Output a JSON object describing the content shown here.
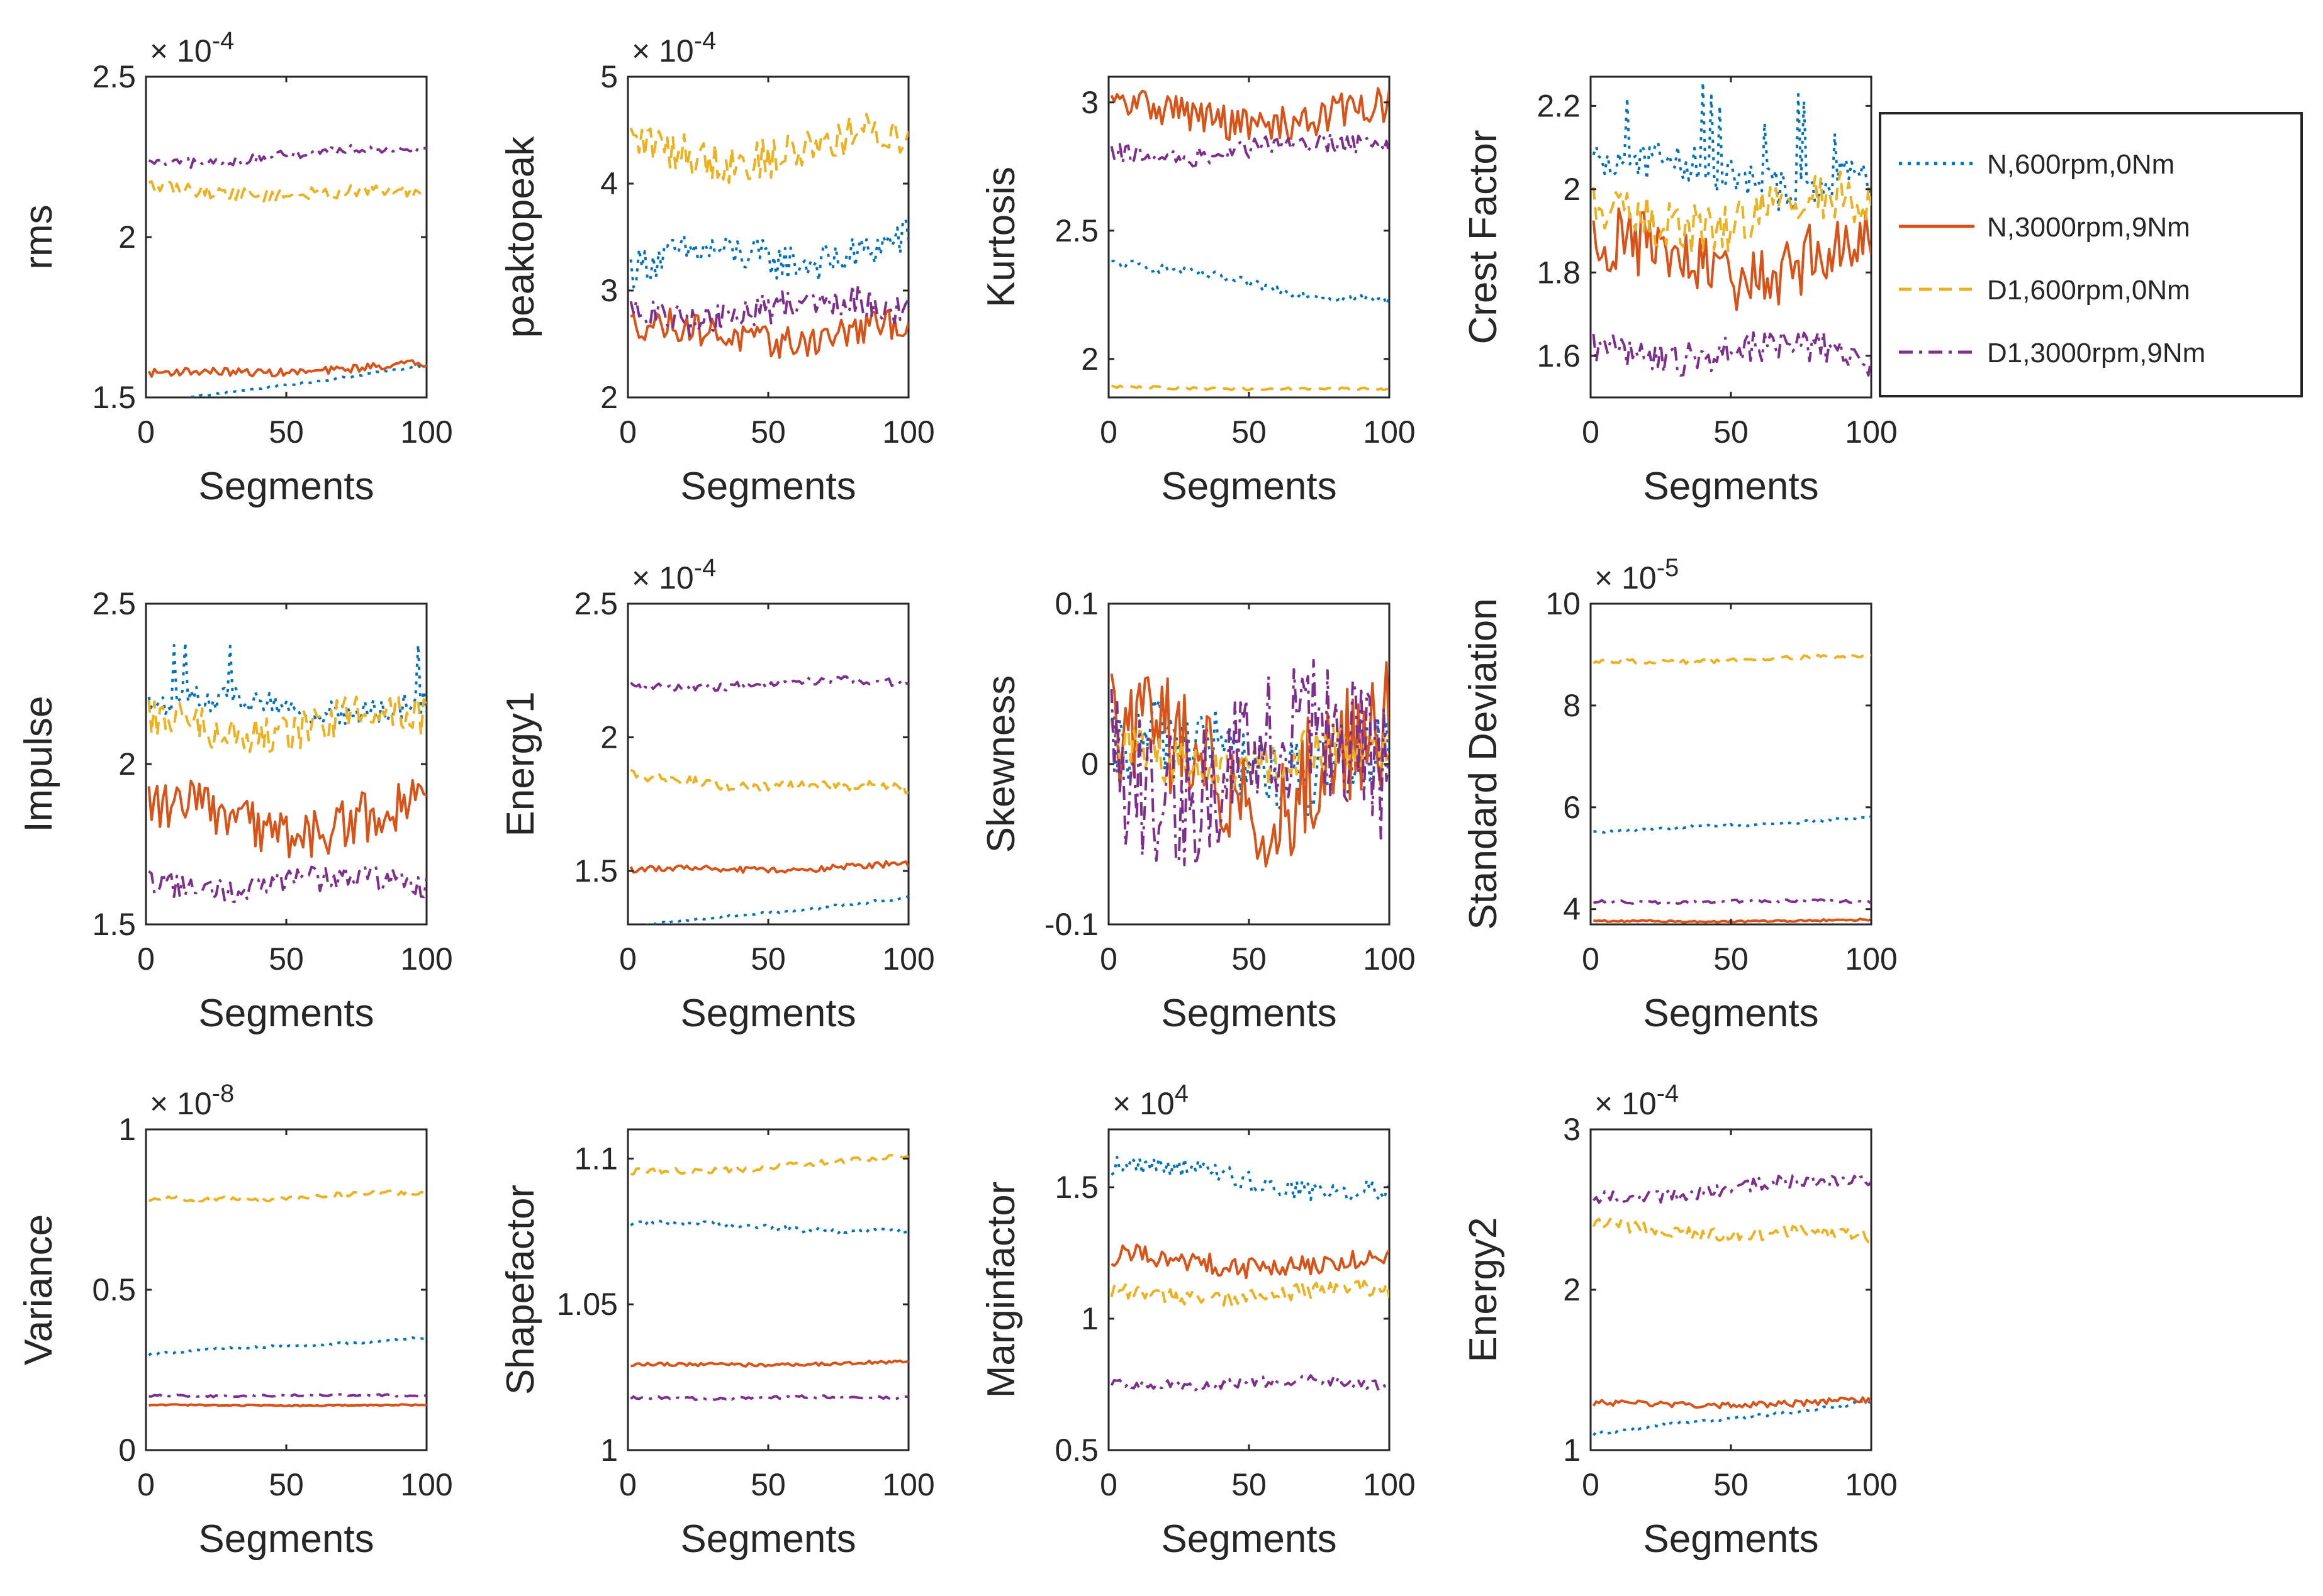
{
  "chart_data": {
    "type": "line",
    "x": {
      "start": 1,
      "end": 100,
      "count": 100
    },
    "legend": {
      "placement": "top-right",
      "entries": [
        {
          "name": "N,600rpm,0Nm",
          "color": "#0072BD",
          "dash": "dotted"
        },
        {
          "name": "N,3000rpm,9Nm",
          "color": "#D95319",
          "dash": "solid"
        },
        {
          "name": "D1,600rpm,0Nm",
          "color": "#EDB120",
          "dash": "dashed"
        },
        {
          "name": "D1,3000rpm,9Nm",
          "color": "#7E2F8E",
          "dash": "dashdot"
        }
      ]
    },
    "colors": {
      "N600": "#0072BD",
      "N3000": "#D95319",
      "D600": "#EDB120",
      "D3000": "#7E2F8E"
    },
    "panels": [
      {
        "ylabel": "rms",
        "xlabel": "Segments",
        "exponent": "× 10^-4",
        "ylim": [
          1.5,
          2.5
        ],
        "yticks": [
          "1.5",
          "2",
          "2.5"
        ],
        "yvals": [
          1.5,
          2,
          2.5
        ],
        "xticks": [
          "0",
          "50",
          "100"
        ],
        "series": [
          {
            "name": "N,600rpm,0Nm",
            "style": "dotted",
            "center": [
              1.48,
              1.6
            ],
            "noise": 0.003,
            "spike": 0
          },
          {
            "name": "N,3000rpm,9Nm",
            "style": "solid",
            "center": [
              1.57,
              1.6
            ],
            "noise": 0.012,
            "spike": 0
          },
          {
            "name": "D1,600rpm,0Nm",
            "style": "dashed",
            "center": [
              2.15,
              2.13
            ],
            "noise": 0.02,
            "spike": 0
          },
          {
            "name": "D1,3000rpm,9Nm",
            "style": "dashdot",
            "center": [
              2.23,
              2.28
            ],
            "noise": 0.015,
            "spike": 0
          }
        ]
      },
      {
        "ylabel": "peaktopeak",
        "xlabel": "Segments",
        "exponent": "× 10^-4",
        "ylim": [
          2,
          5
        ],
        "yticks": [
          "2",
          "3",
          "4",
          "5"
        ],
        "yvals": [
          2,
          3,
          4,
          5
        ],
        "xticks": [
          "0",
          "50",
          "100"
        ],
        "series": [
          {
            "name": "N,600rpm,0Nm",
            "style": "dotted",
            "center": [
              3.2,
              3.45
            ],
            "noise": 0.18,
            "spike": 0
          },
          {
            "name": "N,3000rpm,9Nm",
            "style": "solid",
            "center": [
              2.6,
              2.6
            ],
            "noise": 0.15,
            "spike": 0
          },
          {
            "name": "D1,600rpm,0Nm",
            "style": "dashed",
            "center": [
              4.3,
              4.35
            ],
            "noise": 0.2,
            "spike": 0
          },
          {
            "name": "D1,3000rpm,9Nm",
            "style": "dashdot",
            "center": [
              2.8,
              2.85
            ],
            "noise": 0.15,
            "spike": 0
          }
        ]
      },
      {
        "ylabel": "Kurtosis",
        "xlabel": "Segments",
        "exponent": "",
        "ylim": [
          1.85,
          3.1
        ],
        "yticks": [
          "2",
          "2.5",
          "3"
        ],
        "yvals": [
          2,
          2.5,
          3
        ],
        "xticks": [
          "0",
          "50",
          "100"
        ],
        "series": [
          {
            "name": "N,600rpm,0Nm",
            "style": "dotted",
            "center": [
              2.37,
              2.22
            ],
            "noise": 0.02,
            "spike": 0
          },
          {
            "name": "N,3000rpm,9Nm",
            "style": "solid",
            "center": [
              2.95,
              2.95
            ],
            "noise": 0.07,
            "spike": 0
          },
          {
            "name": "D1,600rpm,0Nm",
            "style": "dashed",
            "center": [
              1.89,
              1.88
            ],
            "noise": 0.005,
            "spike": 0
          },
          {
            "name": "D1,3000rpm,9Nm",
            "style": "dashdot",
            "center": [
              2.8,
              2.83
            ],
            "noise": 0.04,
            "spike": 0
          }
        ]
      },
      {
        "ylabel": "Crest Factor",
        "xlabel": "Segments",
        "exponent": "",
        "ylim": [
          1.5,
          2.27
        ],
        "yticks": [
          "1.6",
          "1.8",
          "2",
          "2.2"
        ],
        "yvals": [
          1.6,
          1.8,
          2,
          2.2
        ],
        "xticks": [
          "0",
          "50",
          "100"
        ],
        "series": [
          {
            "name": "N,600rpm,0Nm",
            "style": "dotted",
            "center": [
              2.05,
              2.02
            ],
            "noise": 0.05,
            "spike": 0.2
          },
          {
            "name": "N,3000rpm,9Nm",
            "style": "solid",
            "center": [
              1.83,
              1.83
            ],
            "noise": 0.08,
            "spike": 0
          },
          {
            "name": "D1,600rpm,0Nm",
            "style": "dashed",
            "center": [
              1.93,
              1.95
            ],
            "noise": 0.06,
            "spike": 0
          },
          {
            "name": "D1,3000rpm,9Nm",
            "style": "dashdot",
            "center": [
              1.62,
              1.6
            ],
            "noise": 0.04,
            "spike": 0
          }
        ]
      },
      {
        "ylabel": "Impulse",
        "xlabel": "Segments",
        "exponent": "",
        "ylim": [
          1.5,
          2.5
        ],
        "yticks": [
          "1.5",
          "2",
          "2.5"
        ],
        "yvals": [
          1.5,
          2,
          2.5
        ],
        "xticks": [
          "0",
          "50",
          "100"
        ],
        "series": [
          {
            "name": "N,600rpm,0Nm",
            "style": "dotted",
            "center": [
              2.18,
              2.18
            ],
            "noise": 0.04,
            "spike": 0.22
          },
          {
            "name": "N,3000rpm,9Nm",
            "style": "solid",
            "center": [
              1.83,
              1.83
            ],
            "noise": 0.08,
            "spike": 0
          },
          {
            "name": "D1,600rpm,0Nm",
            "style": "dashed",
            "center": [
              2.12,
              2.13
            ],
            "noise": 0.06,
            "spike": 0
          },
          {
            "name": "D1,3000rpm,9Nm",
            "style": "dashdot",
            "center": [
              1.63,
              1.62
            ],
            "noise": 0.04,
            "spike": 0
          }
        ]
      },
      {
        "ylabel": "Energy1",
        "xlabel": "Segments",
        "exponent": "× 10^-4",
        "ylim": [
          1.3,
          2.5
        ],
        "yticks": [
          "1.5",
          "2",
          "2.5"
        ],
        "yvals": [
          1.5,
          2,
          2.5
        ],
        "xticks": [
          "0",
          "50",
          "100"
        ],
        "series": [
          {
            "name": "N,600rpm,0Nm",
            "style": "dotted",
            "center": [
              1.29,
              1.4
            ],
            "noise": 0.005,
            "spike": 0
          },
          {
            "name": "N,3000rpm,9Nm",
            "style": "solid",
            "center": [
              1.5,
              1.52
            ],
            "noise": 0.012,
            "spike": 0
          },
          {
            "name": "D1,600rpm,0Nm",
            "style": "dashed",
            "center": [
              1.85,
              1.8
            ],
            "noise": 0.02,
            "spike": 0
          },
          {
            "name": "D1,3000rpm,9Nm",
            "style": "dashdot",
            "center": [
              2.19,
              2.21
            ],
            "noise": 0.015,
            "spike": 0
          }
        ]
      },
      {
        "ylabel": "Skewness",
        "xlabel": "Segments",
        "exponent": "",
        "ylim": [
          -0.1,
          0.1
        ],
        "yticks": [
          "-0.1",
          "0",
          "0.1"
        ],
        "yvals": [
          -0.1,
          0,
          0.1
        ],
        "xticks": [
          "0",
          "50",
          "100"
        ],
        "series": [
          {
            "name": "N,600rpm,0Nm",
            "style": "dotted",
            "center": [
              0.005,
              0.005
            ],
            "noise": 0.025,
            "spike": 0
          },
          {
            "name": "N,3000rpm,9Nm",
            "style": "solid",
            "center": [
              0,
              0
            ],
            "noise": 0.04,
            "spike": 0
          },
          {
            "name": "D1,600rpm,0Nm",
            "style": "dashed",
            "center": [
              0.005,
              0.005
            ],
            "noise": 0.015,
            "spike": 0
          },
          {
            "name": "D1,3000rpm,9Nm",
            "style": "dashdot",
            "center": [
              0,
              0
            ],
            "noise": 0.045,
            "spike": 0
          }
        ]
      },
      {
        "ylabel": "Standard Deviation",
        "xlabel": "Segments",
        "exponent": "× 10^-5",
        "ylim": [
          3.7,
          10
        ],
        "yticks": [
          "4",
          "6",
          "8",
          "10"
        ],
        "yvals": [
          4,
          6,
          8,
          10
        ],
        "xticks": [
          "0",
          "50",
          "100"
        ],
        "series": [
          {
            "name": "N,600rpm,0Nm",
            "style": "dotted",
            "center": [
              5.5,
              5.8
            ],
            "noise": 0.03,
            "spike": 0
          },
          {
            "name": "N,3000rpm,9Nm",
            "style": "solid",
            "center": [
              3.75,
              3.78
            ],
            "noise": 0.02,
            "spike": 0
          },
          {
            "name": "D1,600rpm,0Nm",
            "style": "dashed",
            "center": [
              8.85,
              8.95
            ],
            "noise": 0.04,
            "spike": 0
          },
          {
            "name": "D1,3000rpm,9Nm",
            "style": "dashdot",
            "center": [
              4.15,
              4.15
            ],
            "noise": 0.03,
            "spike": 0
          }
        ]
      },
      {
        "ylabel": "Variance",
        "xlabel": "Segments",
        "exponent": "× 10^-8",
        "ylim": [
          0,
          1
        ],
        "yticks": [
          "0",
          "0.5",
          "1"
        ],
        "yvals": [
          0,
          0.5,
          1
        ],
        "xticks": [
          "0",
          "50",
          "100"
        ],
        "series": [
          {
            "name": "N,600rpm,0Nm",
            "style": "dotted",
            "center": [
              0.3,
              0.35
            ],
            "noise": 0.004,
            "spike": 0
          },
          {
            "name": "N,3000rpm,9Nm",
            "style": "solid",
            "center": [
              0.14,
              0.14
            ],
            "noise": 0.002,
            "spike": 0
          },
          {
            "name": "D1,600rpm,0Nm",
            "style": "dashed",
            "center": [
              0.78,
              0.8
            ],
            "noise": 0.008,
            "spike": 0
          },
          {
            "name": "D1,3000rpm,9Nm",
            "style": "dashdot",
            "center": [
              0.17,
              0.17
            ],
            "noise": 0.003,
            "spike": 0
          }
        ]
      },
      {
        "ylabel": "Shapefactor",
        "xlabel": "Segments",
        "exponent": "",
        "ylim": [
          1,
          1.11
        ],
        "yticks": [
          "1",
          "1.05",
          "1.1"
        ],
        "yvals": [
          1,
          1.05,
          1.1
        ],
        "xticks": [
          "0",
          "50",
          "100"
        ],
        "series": [
          {
            "name": "N,600rpm,0Nm",
            "style": "dotted",
            "center": [
              1.078,
              1.075
            ],
            "noise": 0.001,
            "spike": 0
          },
          {
            "name": "N,3000rpm,9Nm",
            "style": "solid",
            "center": [
              1.029,
              1.03
            ],
            "noise": 0.0006,
            "spike": 0
          },
          {
            "name": "D1,600rpm,0Nm",
            "style": "dashed",
            "center": [
              1.095,
              1.1
            ],
            "noise": 0.001,
            "spike": 0
          },
          {
            "name": "D1,3000rpm,9Nm",
            "style": "dashdot",
            "center": [
              1.018,
              1.018
            ],
            "noise": 0.0005,
            "spike": 0
          }
        ]
      },
      {
        "ylabel": "Marginfactor",
        "xlabel": "Segments",
        "exponent": "× 10^4",
        "ylim": [
          0.5,
          1.72
        ],
        "yticks": [
          "0.5",
          "1",
          "1.5"
        ],
        "yvals": [
          0.5,
          1,
          1.5
        ],
        "xticks": [
          "0",
          "50",
          "100"
        ],
        "series": [
          {
            "name": "N,600rpm,0Nm",
            "style": "dotted",
            "center": [
              1.58,
              1.48
            ],
            "noise": 0.04,
            "spike": 0
          },
          {
            "name": "N,3000rpm,9Nm",
            "style": "solid",
            "center": [
              1.22,
              1.21
            ],
            "noise": 0.04,
            "spike": 0
          },
          {
            "name": "D1,600rpm,0Nm",
            "style": "dashed",
            "center": [
              1.09,
              1.1
            ],
            "noise": 0.03,
            "spike": 0
          },
          {
            "name": "D1,3000rpm,9Nm",
            "style": "dashdot",
            "center": [
              0.76,
              0.75
            ],
            "noise": 0.02,
            "spike": 0
          }
        ]
      },
      {
        "ylabel": "Energy2",
        "xlabel": "Segments",
        "exponent": "× 10^-4",
        "ylim": [
          1,
          3
        ],
        "yticks": [
          "1",
          "2",
          "3"
        ],
        "yvals": [
          1,
          2,
          3
        ],
        "xticks": [
          "0",
          "50",
          "100"
        ],
        "series": [
          {
            "name": "N,600rpm,0Nm",
            "style": "dotted",
            "center": [
              1.1,
              1.3
            ],
            "noise": 0.01,
            "spike": 0
          },
          {
            "name": "N,3000rpm,9Nm",
            "style": "solid",
            "center": [
              1.28,
              1.3
            ],
            "noise": 0.02,
            "spike": 0
          },
          {
            "name": "D1,600rpm,0Nm",
            "style": "dashed",
            "center": [
              2.4,
              2.32
            ],
            "noise": 0.04,
            "spike": 0
          },
          {
            "name": "D1,3000rpm,9Nm",
            "style": "dashdot",
            "center": [
              2.58,
              2.68
            ],
            "noise": 0.04,
            "spike": 0
          }
        ]
      }
    ]
  }
}
